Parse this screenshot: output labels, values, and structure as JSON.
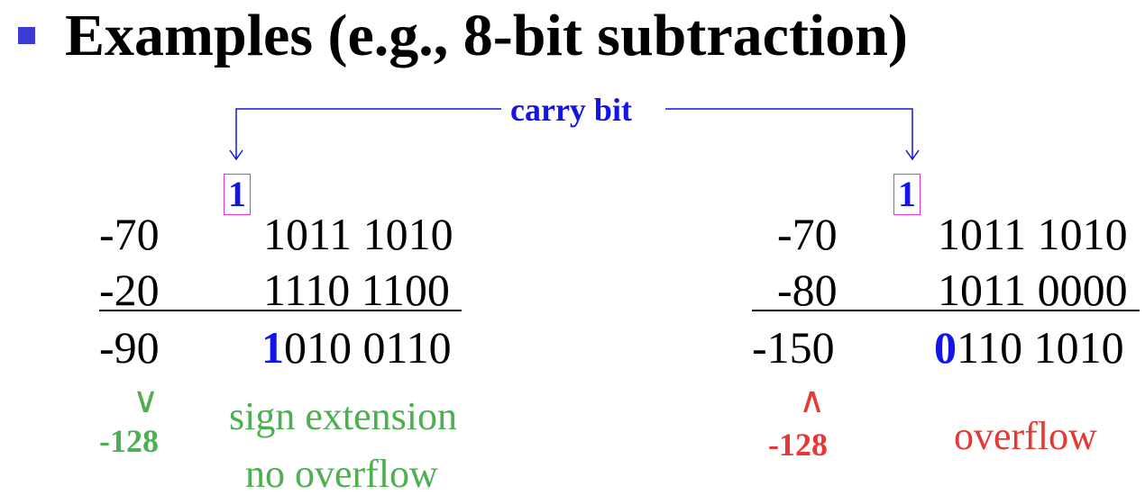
{
  "title": "Examples (e.g., 8-bit subtraction)",
  "carry_label": "carry bit",
  "colors": {
    "blue": "#1414e6",
    "green": "#4caf50",
    "red": "#e53935",
    "box": "#e632d6"
  },
  "left": {
    "carry": "1",
    "rows": [
      {
        "dec": "-70",
        "bin": "1011 1010"
      },
      {
        "dec": "-20",
        "bin": "1110 1100"
      }
    ],
    "result_dec": "-90",
    "result_sign_bit": "1",
    "result_rest": "010 0110",
    "compare": "∨",
    "bound": "-128",
    "note_line1": "sign extension",
    "note_line2": "no overflow"
  },
  "right": {
    "carry": "1",
    "rows": [
      {
        "dec": "-70",
        "bin": "1011 1010"
      },
      {
        "dec": "-80",
        "bin": "1011 0000"
      }
    ],
    "result_dec": "-150",
    "result_sign_bit": "0",
    "result_rest": "110 1010",
    "compare": "∧",
    "bound": "-128",
    "note": "overflow"
  }
}
